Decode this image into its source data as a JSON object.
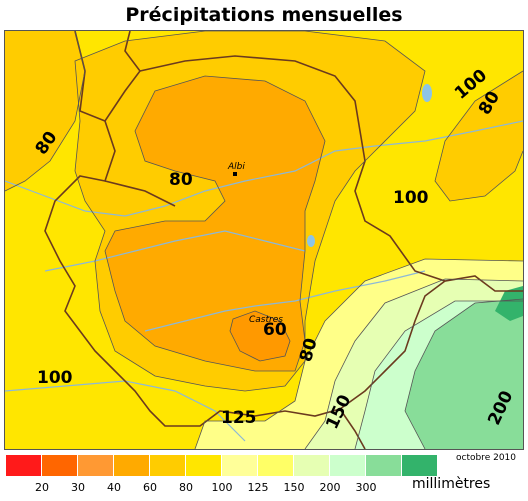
{
  "title": "Précipitations mensuelles",
  "date": "octobre 2010",
  "unit": "millimètres",
  "towns": [
    {
      "name": "Albi"
    },
    {
      "name": "Castres"
    }
  ],
  "contour_labels": [
    "80",
    "80",
    "100",
    "80",
    "100",
    "100",
    "60",
    "80",
    "125",
    "150",
    "200"
  ],
  "legend": {
    "colors": [
      "#ff1a1a",
      "#ff6600",
      "#ff9933",
      "#ffaa00",
      "#ffcc00",
      "#ffe600",
      "#ffff99",
      "#ffff66",
      "#e6ffb3",
      "#ccffcc",
      "#88dd99",
      "#33b36b"
    ],
    "ticks": [
      "20",
      "30",
      "40",
      "60",
      "80",
      "100",
      "125",
      "150",
      "200",
      "300"
    ]
  },
  "fills": {
    "c80": "#ffcc00",
    "c60": "#ffaa00",
    "c40": "#ff9900",
    "c100": "#ffe600",
    "c125": "#ffff88",
    "c150": "#ffff66",
    "c200a": "#ddf5aa",
    "c200b": "#c8f0c8",
    "c300": "#88dd99",
    "c300plus": "#33b36b"
  }
}
